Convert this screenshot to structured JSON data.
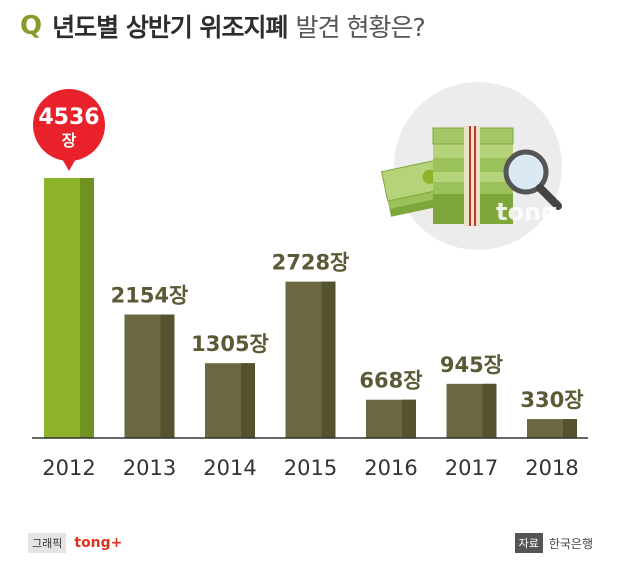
{
  "title": {
    "prefix": "Q",
    "main": "년도별 상반기 위조지폐",
    "sub": "발견 현황은?"
  },
  "unit": "장",
  "chart_data": {
    "type": "bar",
    "categories": [
      "2012",
      "2013",
      "2014",
      "2015",
      "2016",
      "2017",
      "2018"
    ],
    "values": [
      4536,
      2154,
      1305,
      2728,
      668,
      945,
      330
    ],
    "value_labels": [
      "4536",
      "2154장",
      "1305장",
      "2728장",
      "668장",
      "945장",
      "330장"
    ],
    "highlight_label": {
      "value": "4536",
      "unit": "장"
    },
    "highlight_index": 0,
    "ylim": [
      0,
      4536
    ],
    "grid": false,
    "colors": {
      "highlight": "#8db32b",
      "highlight_dark": "#6f9320",
      "bar": "#6b6841",
      "bar_dark": "#55532f",
      "label": "#5c5a36",
      "bubble": "#e8212a"
    }
  },
  "illustration": {
    "icon": "money-stack-magnifier-icon",
    "watermark": "tong+"
  },
  "footer": {
    "graphic_tag": "그래픽",
    "brand": "tong+",
    "source_tag": "자료",
    "source": "한국은행"
  }
}
